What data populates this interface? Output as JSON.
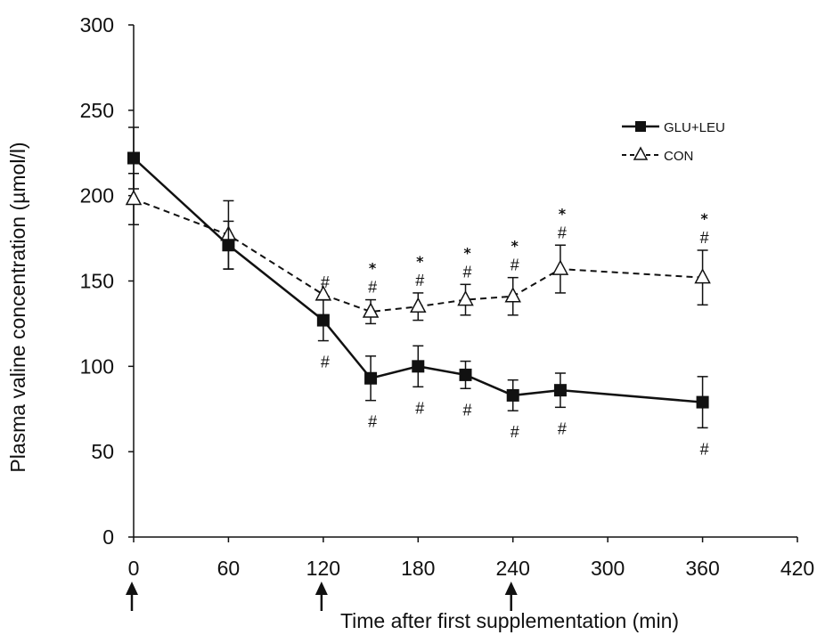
{
  "chart_data": {
    "type": "line",
    "title": "",
    "xlabel": "Time after first supplementation (min)",
    "ylabel": "Plasma valine concentration (µmol/l)",
    "xlim": [
      0,
      420
    ],
    "ylim": [
      0,
      300
    ],
    "x_ticks": [
      "0",
      "60",
      "120",
      "180",
      "240",
      "300",
      "360",
      "420"
    ],
    "y_ticks": [
      "0",
      "50",
      "100",
      "150",
      "200",
      "250",
      "300"
    ],
    "supplementation_arrows_at": [
      0,
      120,
      240
    ],
    "legend_position": "top-right",
    "series": [
      {
        "name": "GLU+LEU",
        "style": "solid-filled-square",
        "points": [
          {
            "x": 0,
            "y": 222,
            "err": 18,
            "marks": ""
          },
          {
            "x": 60,
            "y": 171,
            "err": 14,
            "marks": ""
          },
          {
            "x": 120,
            "y": 127,
            "err": 12,
            "marks": "#"
          },
          {
            "x": 150,
            "y": 93,
            "err": 13,
            "marks": "#"
          },
          {
            "x": 180,
            "y": 100,
            "err": 12,
            "marks": "#"
          },
          {
            "x": 210,
            "y": 95,
            "err": 8,
            "marks": "#"
          },
          {
            "x": 240,
            "y": 83,
            "err": 9,
            "marks": "#"
          },
          {
            "x": 270,
            "y": 86,
            "err": 10,
            "marks": "#"
          },
          {
            "x": 360,
            "y": 79,
            "err": 15,
            "marks": "#"
          }
        ]
      },
      {
        "name": "CON",
        "style": "dashed-open-triangle",
        "points": [
          {
            "x": 0,
            "y": 198,
            "err": 15,
            "marks": ""
          },
          {
            "x": 60,
            "y": 177,
            "err": 20,
            "marks": ""
          },
          {
            "x": 120,
            "y": 142,
            "err": 0,
            "marks": "#"
          },
          {
            "x": 150,
            "y": 132,
            "err": 7,
            "marks": "* #"
          },
          {
            "x": 180,
            "y": 135,
            "err": 8,
            "marks": "* #"
          },
          {
            "x": 210,
            "y": 139,
            "err": 9,
            "marks": "* #"
          },
          {
            "x": 240,
            "y": 141,
            "err": 11,
            "marks": "* #"
          },
          {
            "x": 270,
            "y": 157,
            "err": 14,
            "marks": "* #"
          },
          {
            "x": 360,
            "y": 152,
            "err": 16,
            "marks": "* #"
          }
        ]
      }
    ]
  },
  "colors": {
    "line": "#111111",
    "background": "#ffffff"
  }
}
